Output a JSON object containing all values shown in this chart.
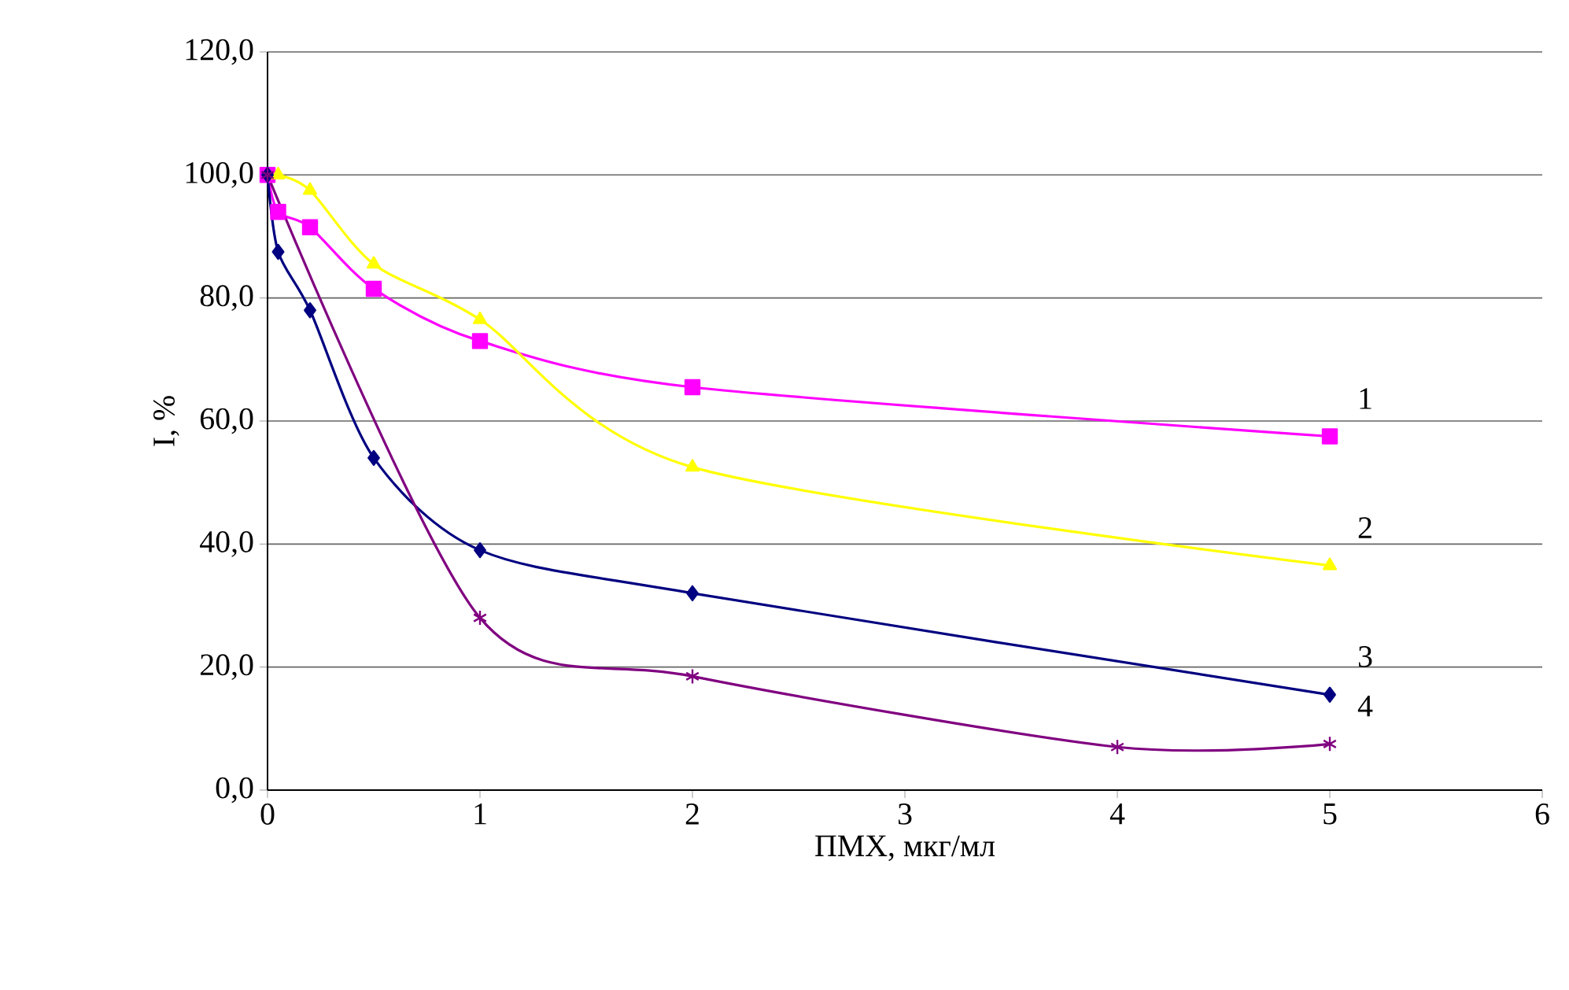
{
  "chart_data": {
    "type": "line",
    "xlabel": "ПМХ, мкг/мл",
    "ylabel": "I, %",
    "xlim": [
      0,
      6
    ],
    "xticks": [
      0,
      1,
      2,
      3,
      4,
      5,
      6
    ],
    "ylim": [
      0,
      120
    ],
    "yticks": [
      {
        "value": 0,
        "label": "0,0"
      },
      {
        "value": 20,
        "label": "20,0"
      },
      {
        "value": 40,
        "label": "40,0"
      },
      {
        "value": 60,
        "label": "60,0"
      },
      {
        "value": 80,
        "label": "80,0"
      },
      {
        "value": 100,
        "label": "100,0"
      },
      {
        "value": 120,
        "label": "120,0"
      }
    ],
    "grid": "y",
    "series": [
      {
        "name": "1",
        "color": "#ff00ff",
        "marker": "square",
        "x": [
          0,
          0.05,
          0.2,
          0.5,
          1,
          2,
          5
        ],
        "values": [
          100,
          94,
          91.5,
          81.5,
          73,
          65.5,
          57.5
        ]
      },
      {
        "name": "2",
        "color": "#ffff00",
        "marker": "triangle",
        "x": [
          0.05,
          0.2,
          0.5,
          1,
          2,
          5
        ],
        "values": [
          100,
          97.5,
          85.5,
          76.5,
          52.5,
          36.5
        ]
      },
      {
        "name": "3",
        "color": "#000080",
        "marker": "diamond",
        "x": [
          0,
          0.05,
          0.2,
          0.5,
          1,
          2,
          5
        ],
        "values": [
          100,
          87.5,
          78,
          54,
          39,
          32,
          15.5
        ]
      },
      {
        "name": "4",
        "color": "#800080",
        "marker": "cross",
        "x": [
          0,
          1,
          2,
          4,
          5
        ],
        "values": [
          100,
          28,
          18.5,
          7,
          7.5
        ]
      }
    ]
  }
}
